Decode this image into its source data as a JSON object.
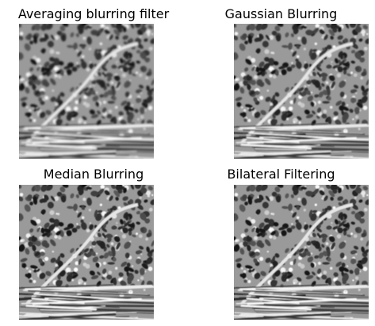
{
  "panels": [
    {
      "title": "Averaging blurring filter",
      "blur": 1.1
    },
    {
      "title": "Gaussian Blurring",
      "blur": 0.7
    },
    {
      "title": "Median Blurring",
      "blur": 0.4
    },
    {
      "title": "Bilateral Filtering",
      "blur": 0.6
    }
  ],
  "colors": {
    "background": "#ffffff",
    "tissue_base": "#9a9a9a",
    "nucleus_dark": "#2a2a2a",
    "stroma_light": "#e6e6e6"
  }
}
